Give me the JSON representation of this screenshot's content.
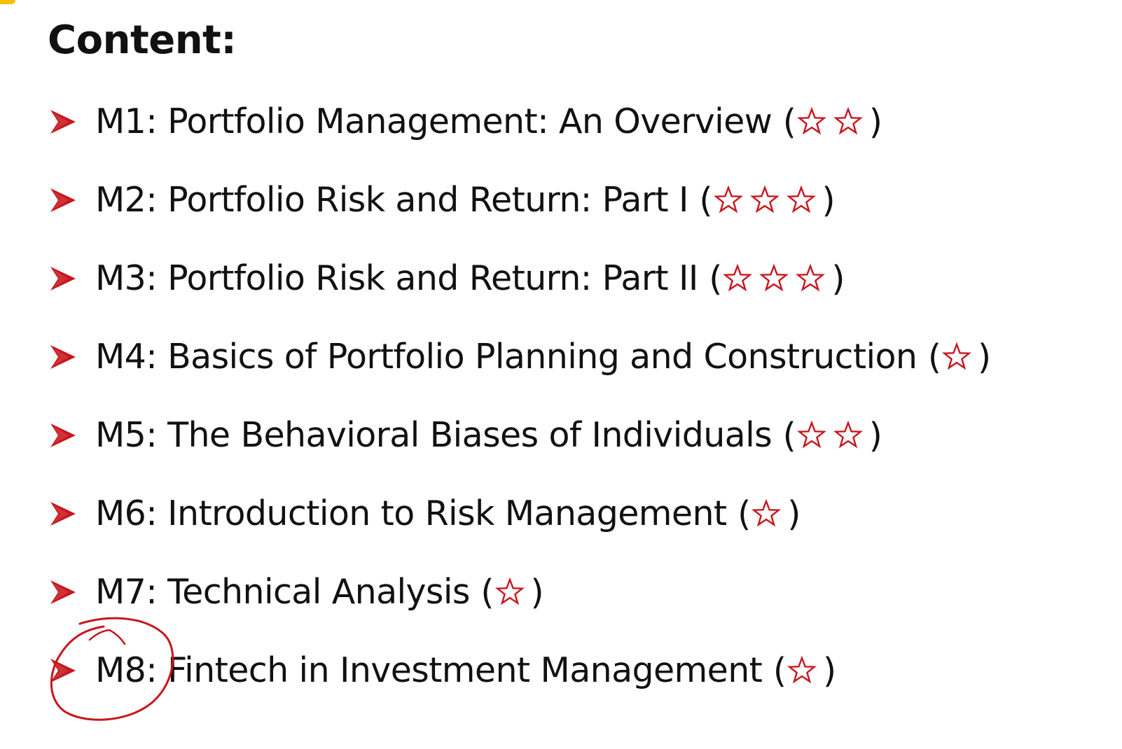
{
  "heading": "Content:",
  "colors": {
    "bullet": "#c8161d",
    "star_outline": "#c8161d",
    "annotation": "#c8161d",
    "text": "#111111"
  },
  "modules": [
    {
      "title": "M1: Portfolio Management: An Overview",
      "stars": 2
    },
    {
      "title": "M2: Portfolio Risk and Return: Part I",
      "stars": 3
    },
    {
      "title": "M3: Portfolio Risk and Return: Part II",
      "stars": 3
    },
    {
      "title": "M4: Basics of Portfolio Planning and Construction",
      "stars": 1
    },
    {
      "title": "M5: The Behavioral Biases of Individuals",
      "stars": 2
    },
    {
      "title": "M6: Introduction to Risk Management",
      "stars": 1
    },
    {
      "title": "M7: Technical Analysis",
      "stars": 1
    },
    {
      "title": "M8: Fintech in Investment Management",
      "stars": 1,
      "circled_prefix": true
    }
  ],
  "icons": {
    "bullet": "arrow-bullet-icon",
    "rating": "star-outline-icon",
    "annotation": "hand-drawn-circle-icon"
  }
}
